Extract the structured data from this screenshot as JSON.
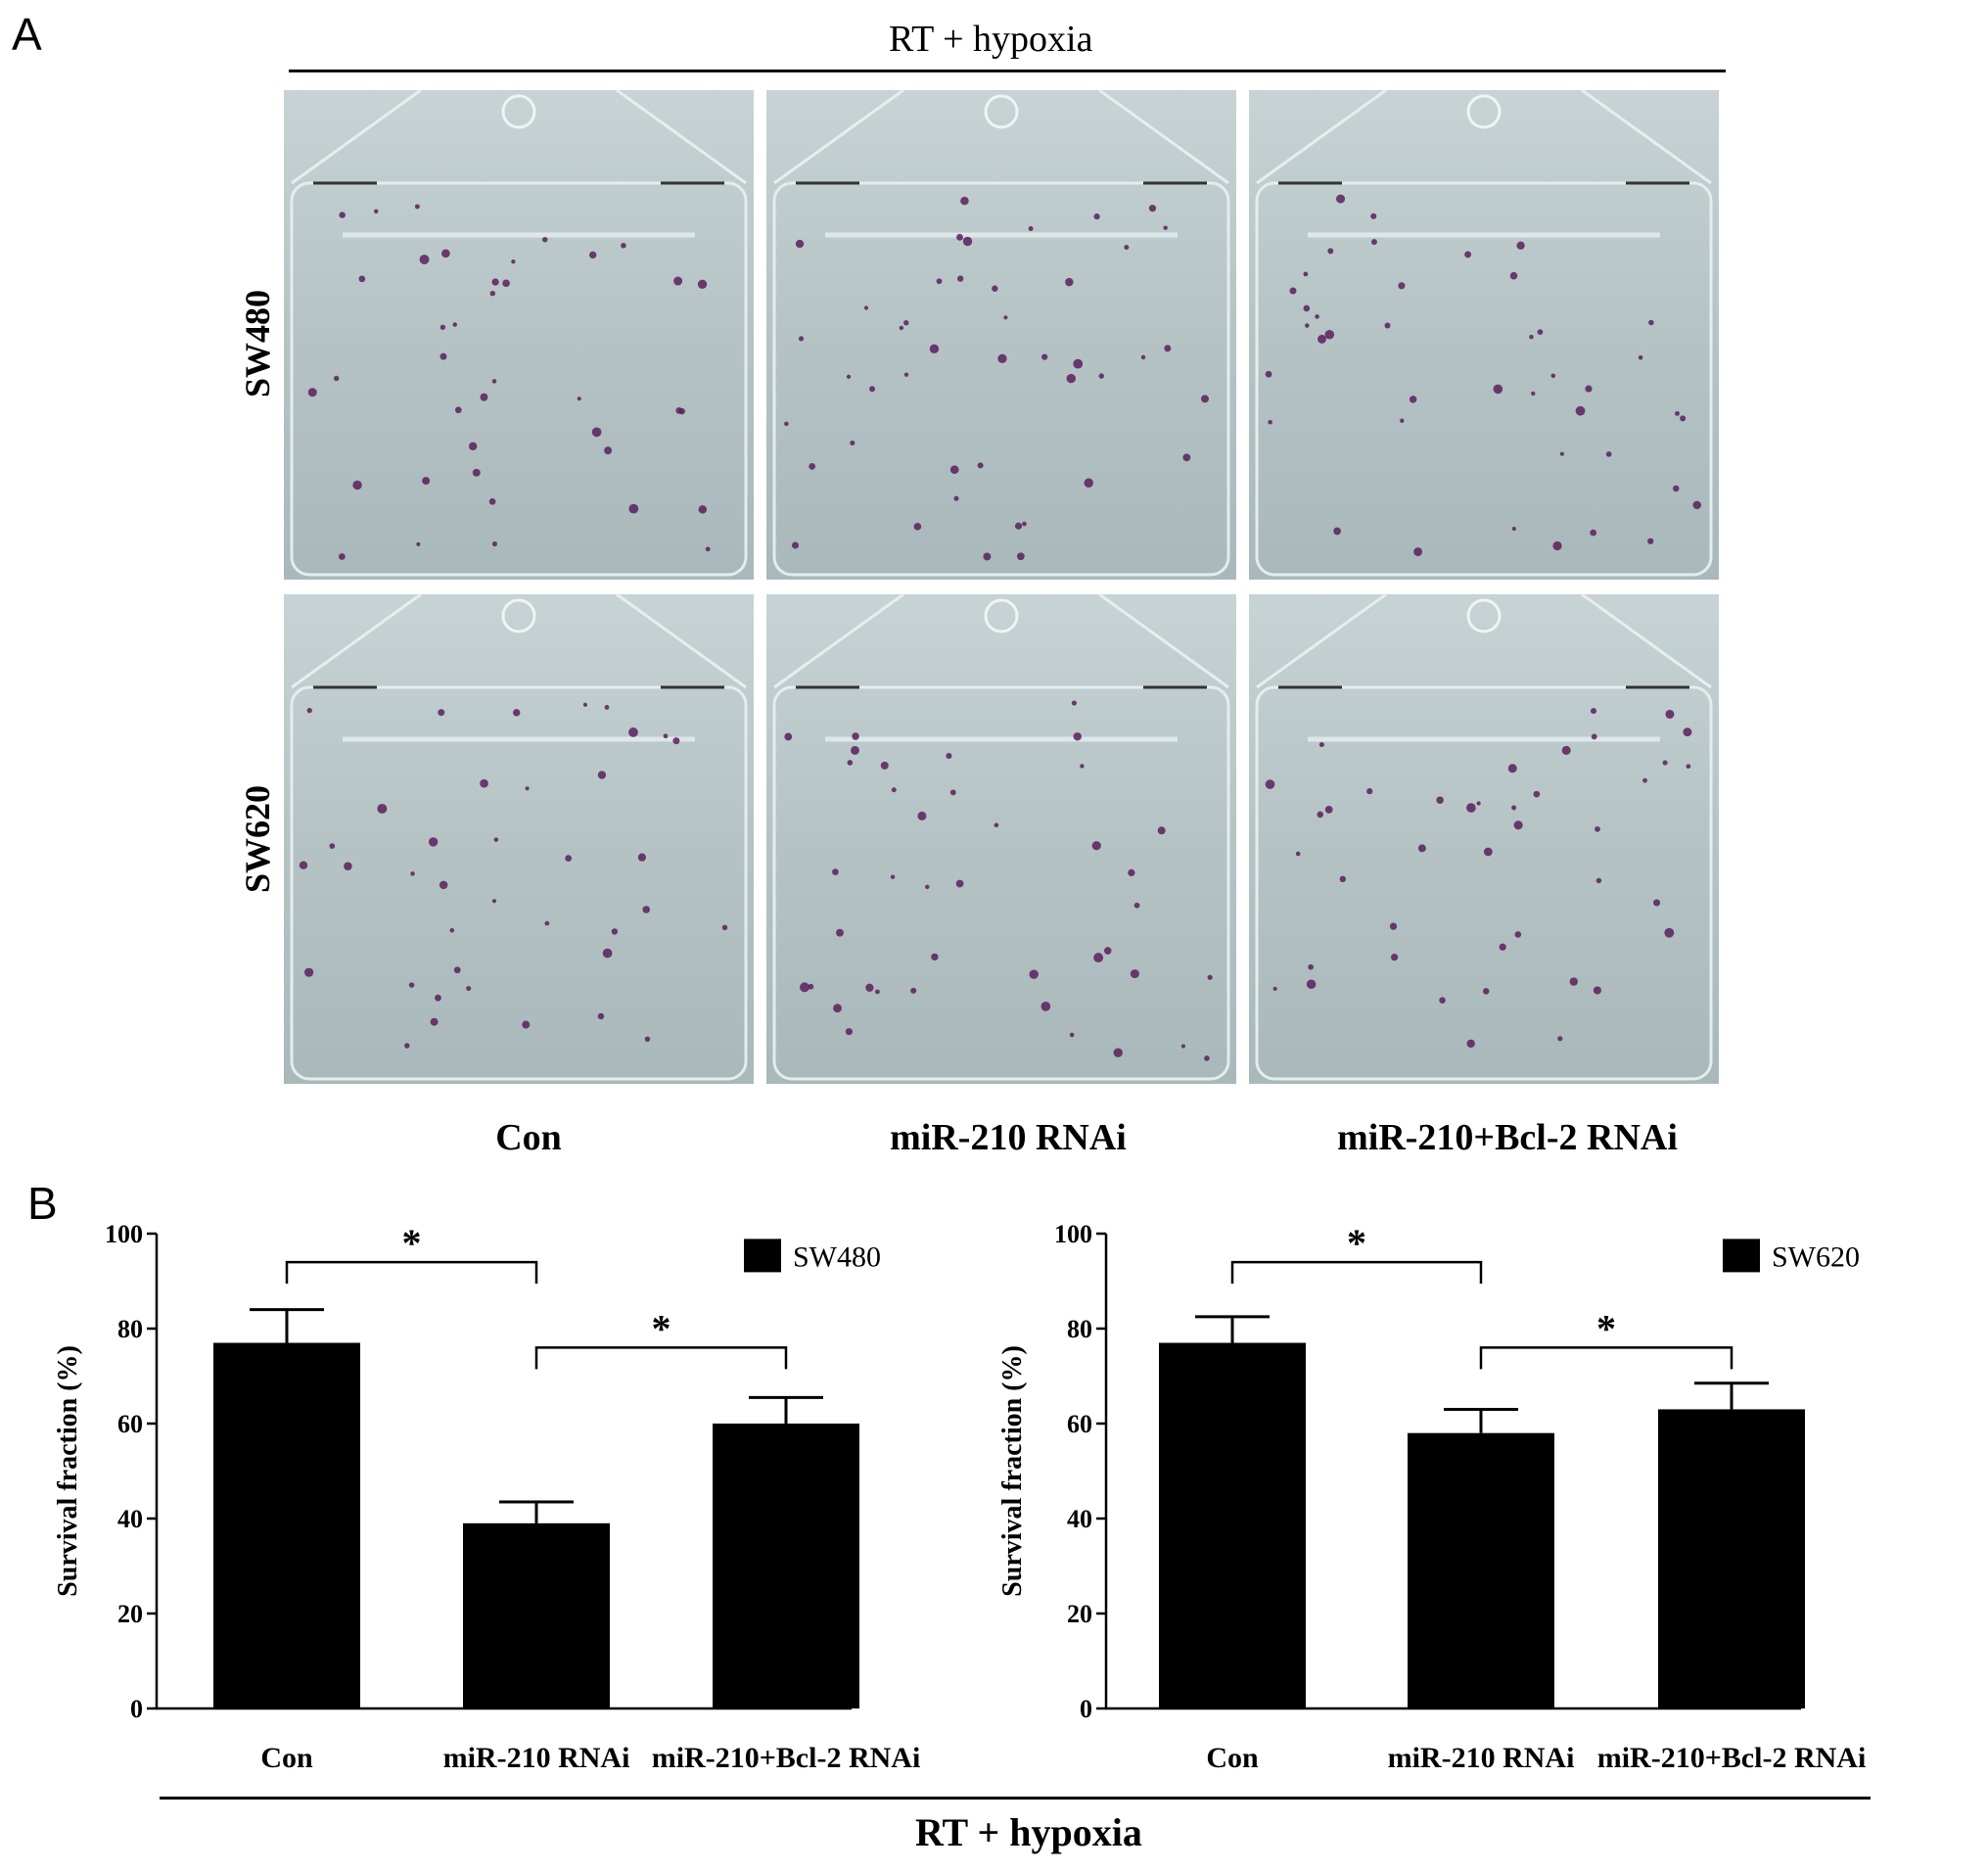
{
  "panel_a": {
    "letter": "A",
    "title": "RT + hypoxia",
    "rows": [
      "SW480",
      "SW620"
    ],
    "columns": [
      "Con",
      "miR-210 RNAi",
      "miR-210+Bcl-2 RNAi"
    ],
    "colors": {
      "flask_bg": "#b9c6c8",
      "colony": "#5a1f5c"
    }
  },
  "panel_b": {
    "letter": "B",
    "bottom_title": "RT + hypoxia"
  },
  "chart_data": [
    {
      "type": "bar",
      "categories": [
        "Con",
        "miR-210 RNAi",
        "miR-210+Bcl-2 RNAi"
      ],
      "series": [
        {
          "name": "SW480",
          "values": [
            77,
            39,
            60
          ],
          "errors": [
            7,
            4.5,
            5.5
          ]
        }
      ],
      "ylabel": "Survival fraction (%)",
      "ylim": [
        0,
        100
      ],
      "yticks": [
        0,
        20,
        40,
        60,
        80,
        100
      ],
      "legend": "top-right",
      "grid": false,
      "significance": [
        {
          "from": "Con",
          "to": "miR-210 RNAi",
          "label": "*"
        },
        {
          "from": "miR-210 RNAi",
          "to": "miR-210+Bcl-2 RNAi",
          "label": "*"
        }
      ]
    },
    {
      "type": "bar",
      "categories": [
        "Con",
        "miR-210 RNAi",
        "miR-210+Bcl-2 RNAi"
      ],
      "series": [
        {
          "name": "SW620",
          "values": [
            77,
            58,
            63
          ],
          "errors": [
            5.5,
            5,
            5.5
          ]
        }
      ],
      "ylabel": "Survival fraction (%)",
      "ylim": [
        0,
        100
      ],
      "yticks": [
        0,
        20,
        40,
        60,
        80,
        100
      ],
      "legend": "top-right",
      "grid": false,
      "significance": [
        {
          "from": "Con",
          "to": "miR-210 RNAi",
          "label": "*"
        },
        {
          "from": "miR-210 RNAi",
          "to": "miR-210+Bcl-2 RNAi",
          "label": "*"
        }
      ]
    }
  ]
}
